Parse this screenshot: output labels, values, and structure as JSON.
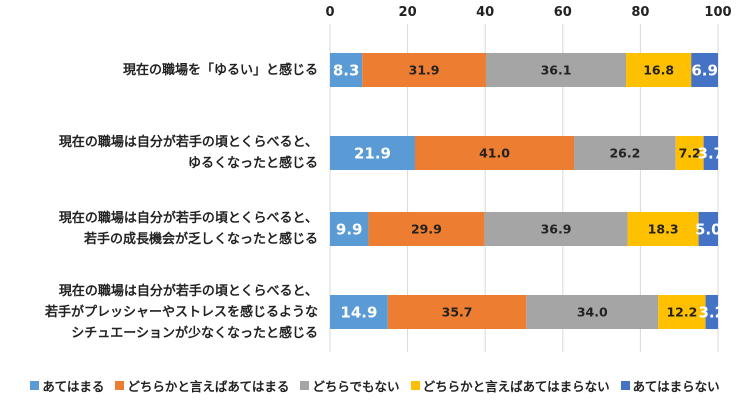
{
  "chart_data": {
    "type": "bar",
    "orientation": "horizontal",
    "stacked": true,
    "xlim": [
      0,
      100
    ],
    "x_ticks": [
      "0",
      "20",
      "40",
      "60",
      "80",
      "100"
    ],
    "categories": [
      [
        "現在の職場を「ゆるい」と感じる"
      ],
      [
        "現在の職場は自分が若手の頃とくらべると、",
        "ゆるくなったと感じる"
      ],
      [
        "現在の職場は自分が若手の頃とくらべると、",
        "若手の成長機会が乏しくなったと感じる"
      ],
      [
        "現在の職場は自分が若手の頃とくらべると、",
        "若手がプレッシャーやストレスを感じるような",
        "シチュエーションが少なくなったと感じる"
      ]
    ],
    "series": [
      {
        "name": "あてはまる",
        "color": "#5B9BD5",
        "values": [
          8.3,
          21.9,
          9.9,
          14.9
        ],
        "labels": [
          "8.3",
          "21.9",
          "9.9",
          "14.9"
        ]
      },
      {
        "name": "どちらかと言えばあてはまる",
        "color": "#ED7D31",
        "values": [
          31.9,
          41.0,
          29.9,
          35.7
        ],
        "labels": [
          "31.9",
          "41.0",
          "29.9",
          "35.7"
        ]
      },
      {
        "name": "どちらでもない",
        "color": "#A5A5A5",
        "values": [
          36.1,
          26.2,
          36.9,
          34.0
        ],
        "labels": [
          "36.1",
          "26.2",
          "36.9",
          "34.0"
        ]
      },
      {
        "name": "どちらかと言えばあてはまらない",
        "color": "#FFC000",
        "values": [
          16.8,
          7.2,
          18.3,
          12.2
        ],
        "labels": [
          "16.8",
          "7.2",
          "18.3",
          "12.2"
        ]
      },
      {
        "name": "あてはまらない",
        "color": "#4472C4",
        "values": [
          6.9,
          3.7,
          5.0,
          3.2
        ],
        "labels": [
          "6.9",
          "3.7",
          "5.0",
          "3.2"
        ]
      }
    ],
    "grid": true,
    "legend_position": "bottom"
  }
}
